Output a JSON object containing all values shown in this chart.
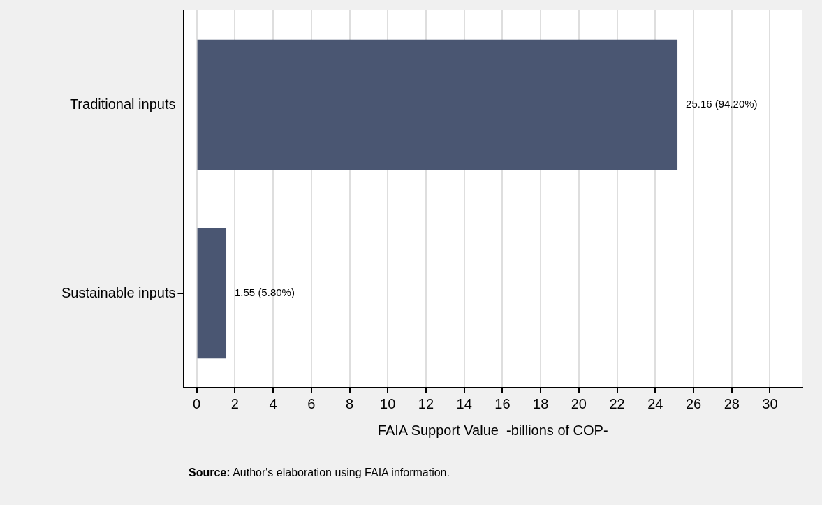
{
  "chart_data": {
    "type": "bar",
    "orientation": "horizontal",
    "xlabel": "FAIA Support Value  -billions of COP-",
    "categories": [
      "Traditional inputs",
      "Sustainable inputs"
    ],
    "values": [
      25.16,
      1.55
    ],
    "color": "#4a5672",
    "value_labels": [
      "25.16 (94.20%)",
      "1.55 (5.80%)"
    ],
    "xlim": [
      -0.7,
      31.7
    ],
    "xticks": [
      0,
      2,
      4,
      6,
      8,
      10,
      12,
      14,
      16,
      18,
      20,
      22,
      24,
      26,
      28,
      30
    ],
    "grid": "x",
    "annotations": [
      "Source: Author's elaboration using FAIA information."
    ]
  }
}
